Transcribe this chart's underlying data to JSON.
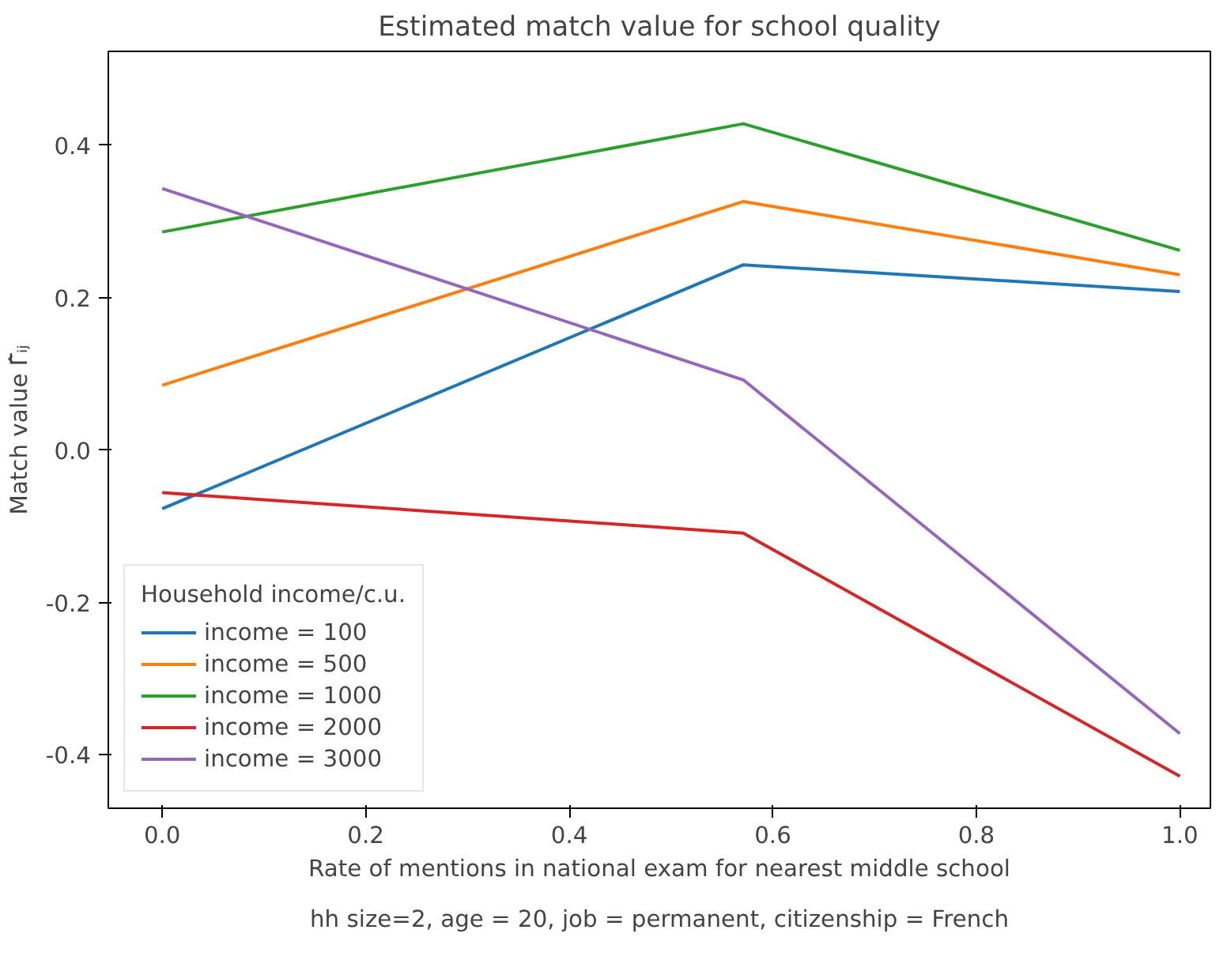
{
  "chart_data": {
    "type": "line",
    "title": "Estimated match value for school quality",
    "xlabel": "Rate of mentions in national exam for nearest middle school",
    "ylabel": "Match value Γ̂ᵢⱼ",
    "legend_title": "Household income/c.u.",
    "x": [
      0.0,
      0.571,
      1.0
    ],
    "series": [
      {
        "name": "income = 100",
        "color": "#1f77b4",
        "values": [
          -0.077,
          0.243,
          0.208
        ]
      },
      {
        "name": "income = 500",
        "color": "#ff7f0e",
        "values": [
          0.085,
          0.326,
          0.23
        ]
      },
      {
        "name": "income = 1000",
        "color": "#2ca02c",
        "values": [
          0.286,
          0.428,
          0.262
        ]
      },
      {
        "name": "income = 2000",
        "color": "#d62728",
        "values": [
          -0.056,
          -0.109,
          -0.428
        ]
      },
      {
        "name": "income = 3000",
        "color": "#9467bd",
        "values": [
          0.343,
          0.092,
          -0.372
        ]
      }
    ],
    "xlim": [
      -0.053,
      1.03
    ],
    "ylim": [
      -0.47,
      0.523
    ],
    "xticks": [
      {
        "value": 0,
        "label": "0.0"
      },
      0.2,
      0.4,
      0.6,
      0.8,
      {
        "value": 1,
        "label": "1.0"
      }
    ],
    "yticks": [
      -0.4,
      -0.2,
      {
        "value": 0,
        "label": "0.0"
      },
      0.2,
      0.4
    ],
    "grid": false,
    "legend": "bottom left",
    "marker": "none",
    "line_style": "solid",
    "annotations": [
      "hh size=2, age = 20, job = permanent, citizenship = French"
    ]
  }
}
